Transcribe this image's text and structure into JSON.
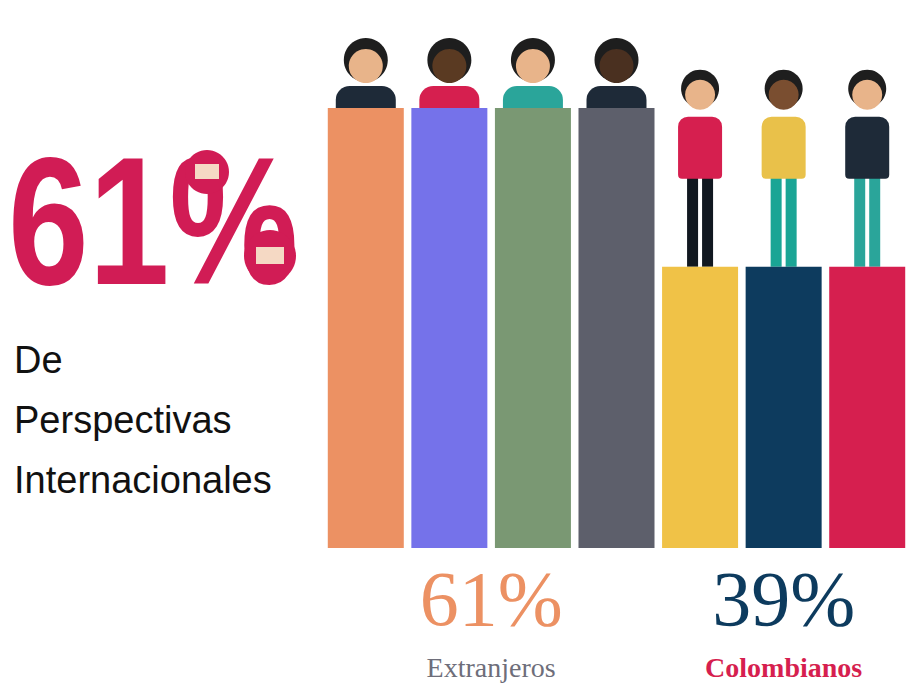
{
  "chart_data": {
    "type": "bar",
    "categories": [
      null,
      null,
      null,
      null,
      null,
      null,
      null
    ],
    "series": [
      {
        "name": "Extranjeros",
        "values": [
          61,
          61,
          61,
          61,
          null,
          null,
          null
        ]
      },
      {
        "name": "Colombianos",
        "values": [
          null,
          null,
          null,
          null,
          39,
          39,
          39
        ]
      }
    ],
    "colors": [
      "#ec9163",
      "#7572ea",
      "#7a9873",
      "#5d5f6b",
      "#f0c247",
      "#0d3b5e",
      "#d61f4f"
    ],
    "ylim": [
      0,
      61
    ],
    "grid": false,
    "tick_labels": false,
    "annotations": [
      {
        "text": "61%",
        "caption": "De Perspectivas Internacionales"
      },
      {
        "text": "61%",
        "series": "Extranjeros"
      },
      {
        "text": "39%",
        "series": "Colombianos"
      }
    ]
  }
}
